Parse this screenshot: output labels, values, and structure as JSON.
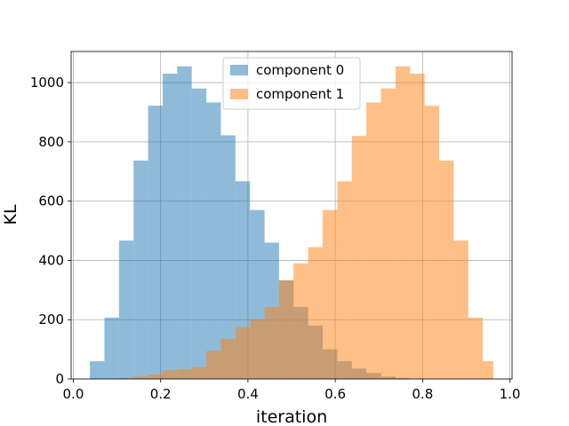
{
  "chart_data": {
    "type": "histogram",
    "title": "",
    "xlabel": "iteration",
    "ylabel": "KL",
    "xlim": [
      -0.005,
      1.005
    ],
    "ylim": [
      0,
      1105
    ],
    "xticks": [
      0.0,
      0.2,
      0.4,
      0.6,
      0.8,
      1.0
    ],
    "xtick_labels": [
      "0.0",
      "0.2",
      "0.4",
      "0.6",
      "0.8",
      "1.0"
    ],
    "yticks": [
      0,
      200,
      400,
      600,
      800,
      1000
    ],
    "ytick_labels": [
      "0",
      "200",
      "400",
      "600",
      "800",
      "1000"
    ],
    "grid": true,
    "legend_position": "top-center",
    "bin_edges": [
      0.038,
      0.0713,
      0.1047,
      0.138,
      0.1713,
      0.2047,
      0.238,
      0.2713,
      0.3047,
      0.338,
      0.3713,
      0.4047,
      0.438,
      0.4713,
      0.5047,
      0.538,
      0.5713,
      0.6047,
      0.638,
      0.6713,
      0.7047,
      0.738,
      0.7713,
      0.8047,
      0.838,
      0.8713,
      0.9047,
      0.938,
      0.962
    ],
    "series": [
      {
        "name": "component 0",
        "color": "#1f77b4",
        "opacity": 0.5,
        "bins": [
          {
            "x0": 0.038,
            "x1": 0.0713,
            "count": 60
          },
          {
            "x0": 0.0713,
            "x1": 0.1047,
            "count": 207
          },
          {
            "x0": 0.1047,
            "x1": 0.138,
            "count": 467
          },
          {
            "x0": 0.138,
            "x1": 0.1713,
            "count": 737
          },
          {
            "x0": 0.1713,
            "x1": 0.2047,
            "count": 922
          },
          {
            "x0": 0.2047,
            "x1": 0.238,
            "count": 1030
          },
          {
            "x0": 0.238,
            "x1": 0.2713,
            "count": 1055
          },
          {
            "x0": 0.2713,
            "x1": 0.3047,
            "count": 980
          },
          {
            "x0": 0.3047,
            "x1": 0.338,
            "count": 933
          },
          {
            "x0": 0.338,
            "x1": 0.3713,
            "count": 822
          },
          {
            "x0": 0.3713,
            "x1": 0.4047,
            "count": 667
          },
          {
            "x0": 0.4047,
            "x1": 0.438,
            "count": 570
          },
          {
            "x0": 0.438,
            "x1": 0.4713,
            "count": 460
          },
          {
            "x0": 0.4713,
            "x1": 0.5047,
            "count": 333
          },
          {
            "x0": 0.5047,
            "x1": 0.538,
            "count": 243
          },
          {
            "x0": 0.538,
            "x1": 0.5713,
            "count": 180
          },
          {
            "x0": 0.5713,
            "x1": 0.6047,
            "count": 100
          },
          {
            "x0": 0.6047,
            "x1": 0.638,
            "count": 60
          },
          {
            "x0": 0.638,
            "x1": 0.6713,
            "count": 35
          },
          {
            "x0": 0.6713,
            "x1": 0.7047,
            "count": 20
          },
          {
            "x0": 0.7047,
            "x1": 0.738,
            "count": 8
          },
          {
            "x0": 0.738,
            "x1": 0.7713,
            "count": 3
          }
        ]
      },
      {
        "name": "component 1",
        "color": "#ff7f0e",
        "opacity": 0.5,
        "bins": [
          {
            "x0": 0.1047,
            "x1": 0.138,
            "count": 3
          },
          {
            "x0": 0.138,
            "x1": 0.1713,
            "count": 8
          },
          {
            "x0": 0.1713,
            "x1": 0.2047,
            "count": 15
          },
          {
            "x0": 0.2047,
            "x1": 0.238,
            "count": 30
          },
          {
            "x0": 0.238,
            "x1": 0.2713,
            "count": 33
          },
          {
            "x0": 0.2713,
            "x1": 0.3047,
            "count": 40
          },
          {
            "x0": 0.3047,
            "x1": 0.338,
            "count": 95
          },
          {
            "x0": 0.338,
            "x1": 0.3713,
            "count": 135
          },
          {
            "x0": 0.3713,
            "x1": 0.4047,
            "count": 175
          },
          {
            "x0": 0.4047,
            "x1": 0.438,
            "count": 200
          },
          {
            "x0": 0.438,
            "x1": 0.4713,
            "count": 243
          },
          {
            "x0": 0.4713,
            "x1": 0.5047,
            "count": 333
          },
          {
            "x0": 0.5047,
            "x1": 0.538,
            "count": 390
          },
          {
            "x0": 0.538,
            "x1": 0.5713,
            "count": 445
          },
          {
            "x0": 0.5713,
            "x1": 0.6047,
            "count": 570
          },
          {
            "x0": 0.6047,
            "x1": 0.638,
            "count": 667
          },
          {
            "x0": 0.638,
            "x1": 0.6713,
            "count": 820
          },
          {
            "x0": 0.6713,
            "x1": 0.7047,
            "count": 933
          },
          {
            "x0": 0.7047,
            "x1": 0.738,
            "count": 980
          },
          {
            "x0": 0.738,
            "x1": 0.7713,
            "count": 1055
          },
          {
            "x0": 0.7713,
            "x1": 0.8047,
            "count": 1030
          },
          {
            "x0": 0.8047,
            "x1": 0.838,
            "count": 922
          },
          {
            "x0": 0.838,
            "x1": 0.8713,
            "count": 737
          },
          {
            "x0": 0.8713,
            "x1": 0.9047,
            "count": 467
          },
          {
            "x0": 0.9047,
            "x1": 0.938,
            "count": 207
          },
          {
            "x0": 0.938,
            "x1": 0.962,
            "count": 60
          }
        ]
      }
    ]
  }
}
